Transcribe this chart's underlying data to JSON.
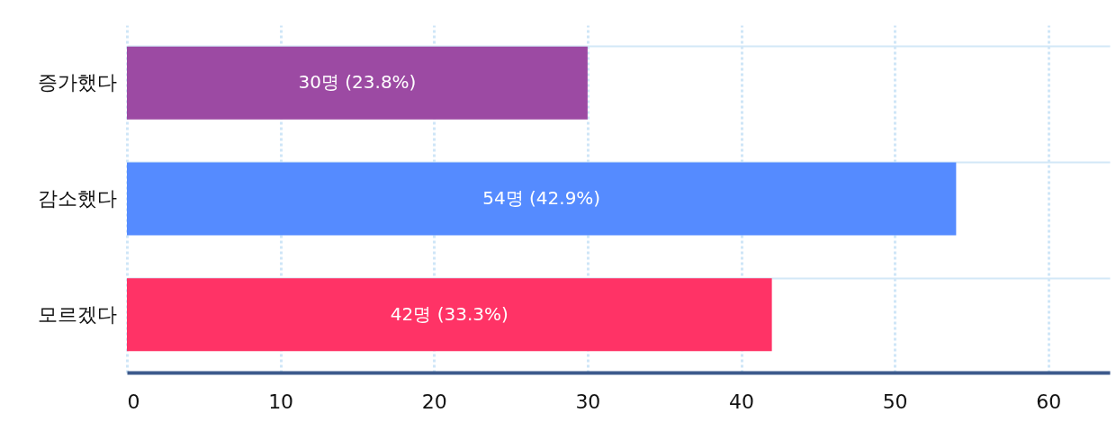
{
  "chart_data": {
    "type": "bar",
    "orientation": "horizontal",
    "categories": [
      "증가했다",
      "감소했다",
      "모르겠다"
    ],
    "values": [
      30,
      54,
      42
    ],
    "colors": [
      "#9c4aa3",
      "#558bff",
      "#ff3366"
    ],
    "value_labels": [
      "30명 (23.8%)",
      "54명 (42.9%)",
      "42명 (33.3%)"
    ],
    "xlim": [
      0,
      64
    ],
    "xticks": [
      0,
      10,
      20,
      30,
      40,
      50,
      60
    ],
    "grid": true
  }
}
